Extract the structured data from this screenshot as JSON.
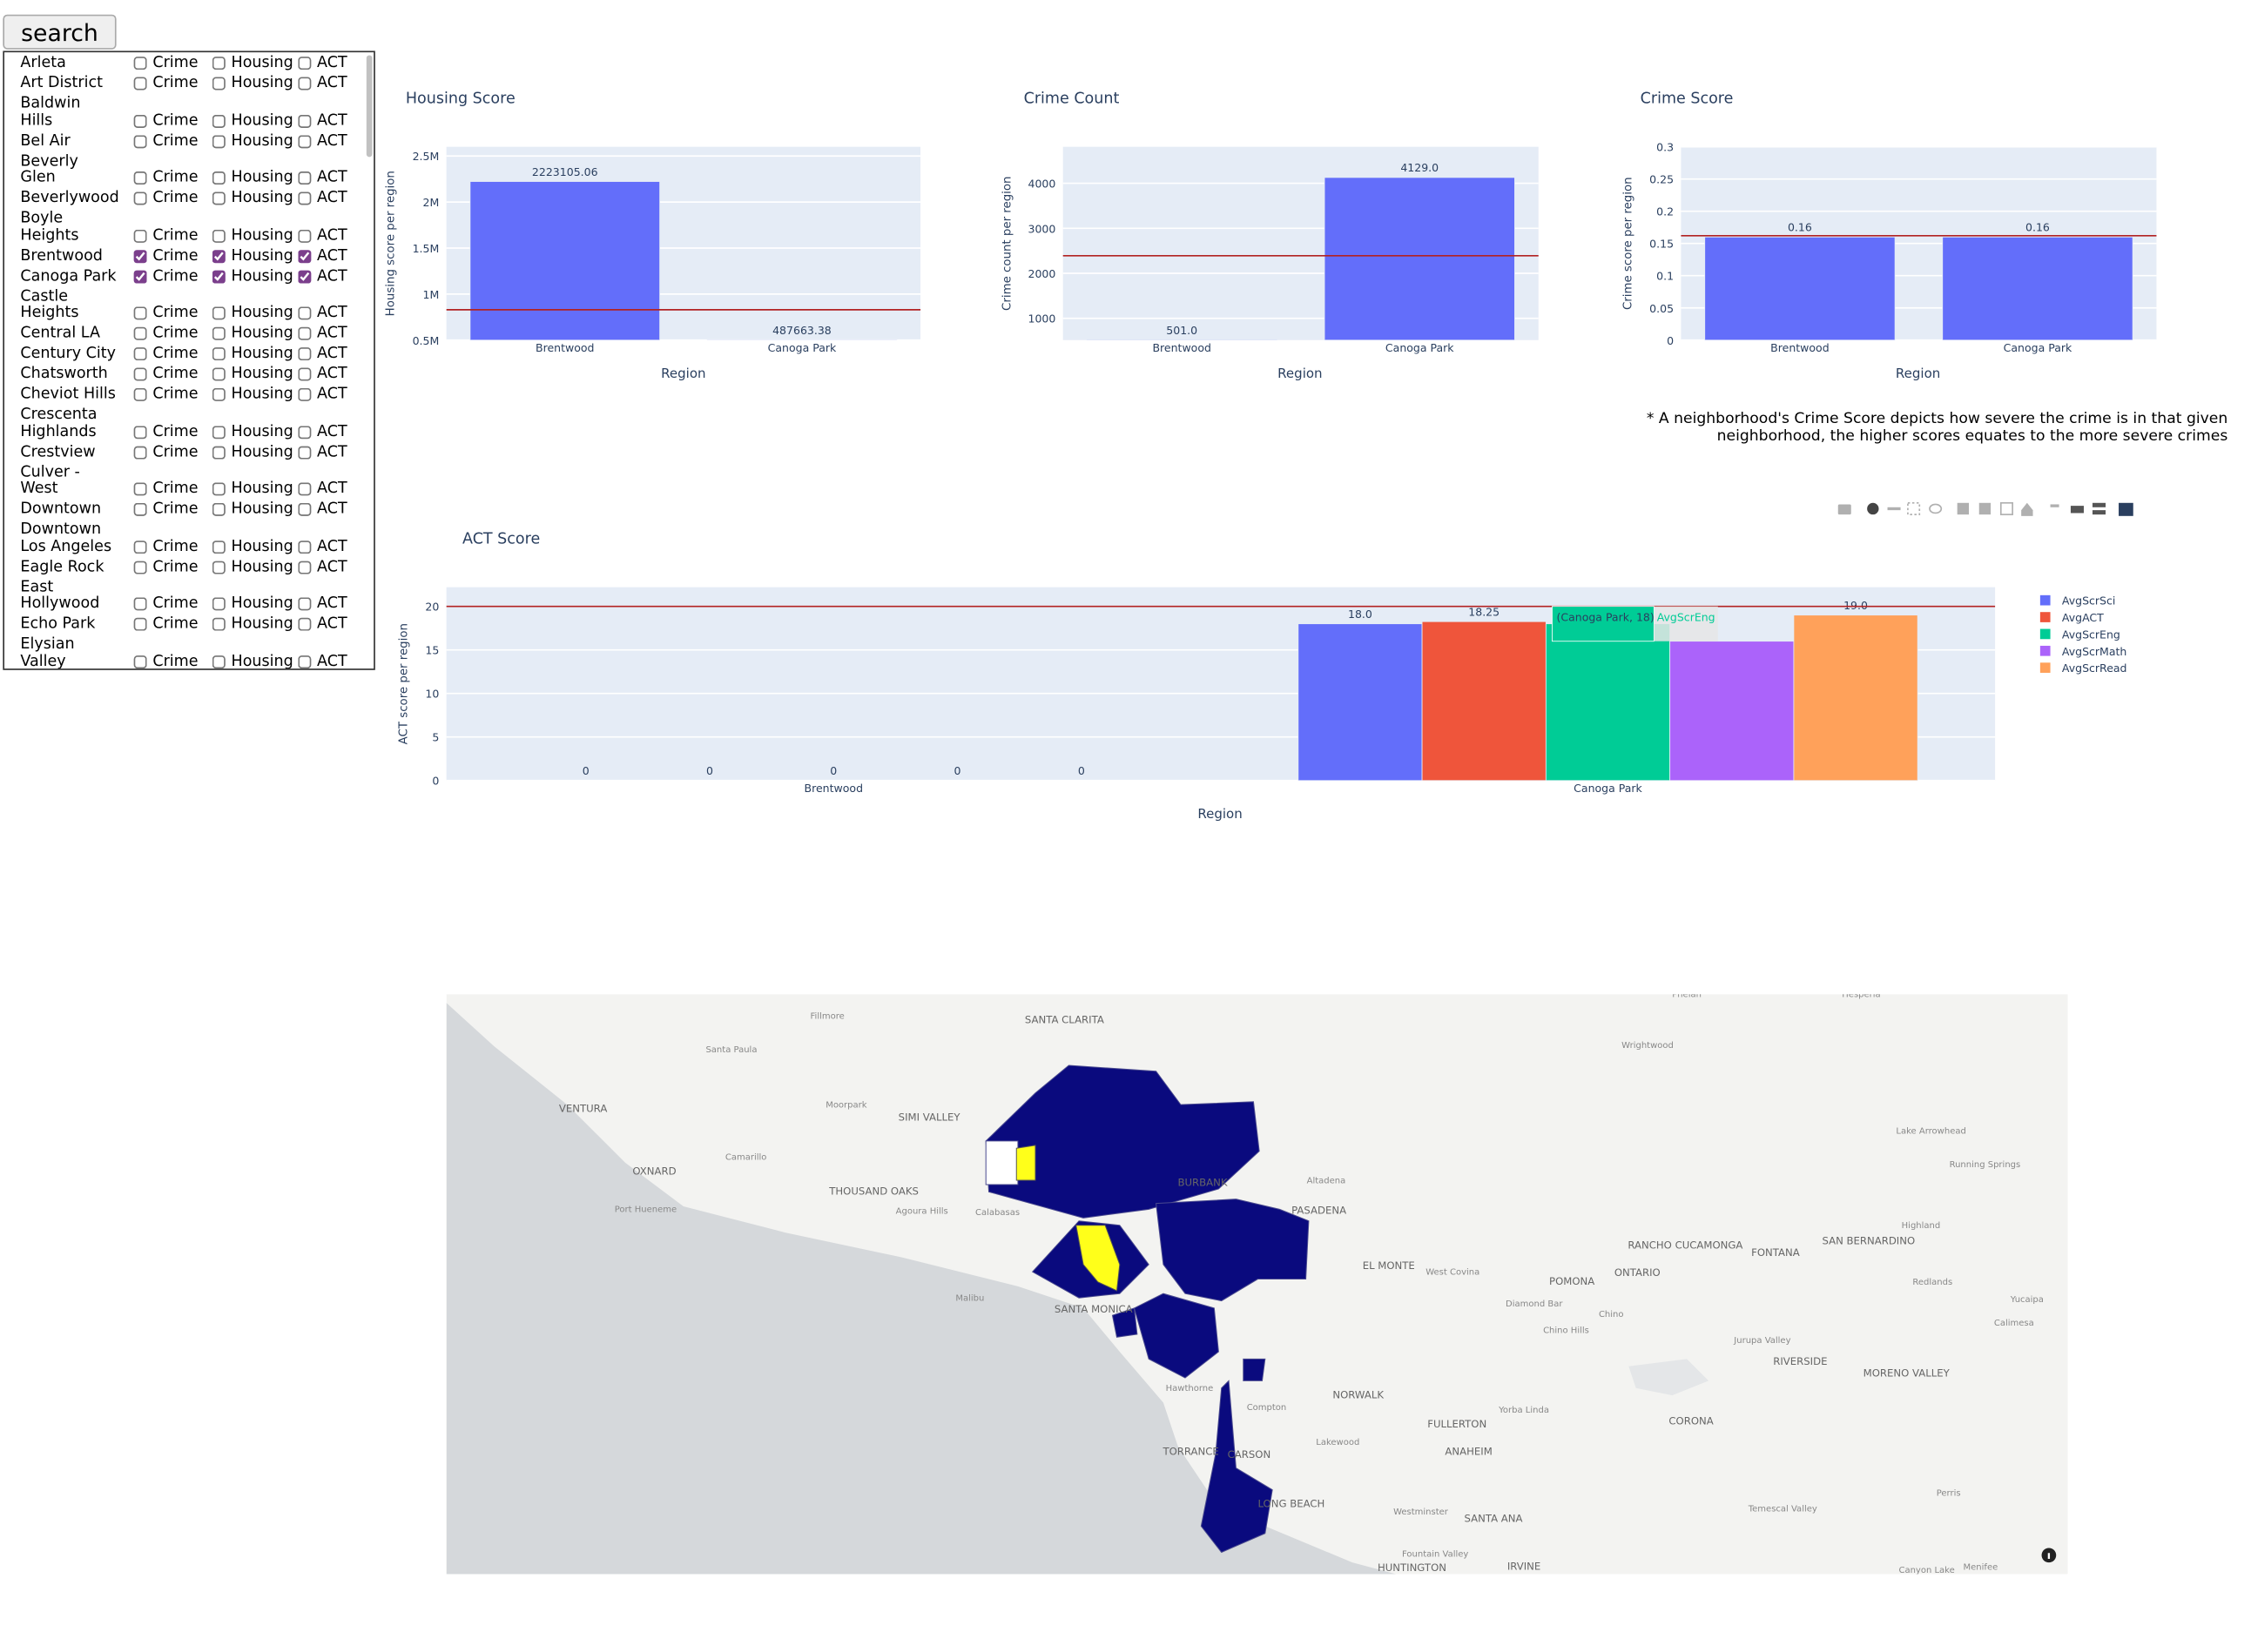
{
  "search_button": "search",
  "checkbox_labels": {
    "crime": "Crime",
    "housing": "Housing",
    "act": "ACT"
  },
  "neighborhoods": [
    {
      "name": "Arleta",
      "checked": [
        false,
        false,
        false
      ]
    },
    {
      "name": "Art District",
      "checked": [
        false,
        false,
        false
      ]
    },
    {
      "name": "Baldwin Hills",
      "checked": [
        false,
        false,
        false
      ]
    },
    {
      "name": "Bel Air",
      "checked": [
        false,
        false,
        false
      ]
    },
    {
      "name": "Beverly Glen",
      "checked": [
        false,
        false,
        false
      ]
    },
    {
      "name": "Beverlywood",
      "checked": [
        false,
        false,
        false
      ]
    },
    {
      "name": "Boyle Heights",
      "checked": [
        false,
        false,
        false
      ]
    },
    {
      "name": "Brentwood",
      "checked": [
        true,
        true,
        true
      ]
    },
    {
      "name": "Canoga Park",
      "checked": [
        true,
        true,
        true
      ]
    },
    {
      "name": "Castle Heights",
      "checked": [
        false,
        false,
        false
      ]
    },
    {
      "name": "Central LA",
      "checked": [
        false,
        false,
        false
      ]
    },
    {
      "name": "Century City",
      "checked": [
        false,
        false,
        false
      ]
    },
    {
      "name": "Chatsworth",
      "checked": [
        false,
        false,
        false
      ]
    },
    {
      "name": "Cheviot Hills",
      "checked": [
        false,
        false,
        false
      ]
    },
    {
      "name": "Crescenta Highlands",
      "checked": [
        false,
        false,
        false
      ]
    },
    {
      "name": "Crestview",
      "checked": [
        false,
        false,
        false
      ]
    },
    {
      "name": "Culver - West",
      "checked": [
        false,
        false,
        false
      ]
    },
    {
      "name": "Downtown",
      "checked": [
        false,
        false,
        false
      ]
    },
    {
      "name": "Downtown Los Angeles",
      "checked": [
        false,
        false,
        false
      ]
    },
    {
      "name": "Eagle Rock",
      "checked": [
        false,
        false,
        false
      ]
    },
    {
      "name": "East Hollywood",
      "checked": [
        false,
        false,
        false
      ]
    },
    {
      "name": "Echo Park",
      "checked": [
        false,
        false,
        false
      ]
    },
    {
      "name": "Elysian Valley",
      "checked": [
        false,
        false,
        false
      ]
    }
  ],
  "chart_data": [
    {
      "type": "bar",
      "title": "Housing Score",
      "x_label": "Region",
      "y_label": "Housing score per region",
      "categories": [
        "Brentwood",
        "Canoga Park"
      ],
      "values": [
        2223105.06,
        487663.38
      ],
      "color": "#636efa",
      "ylim": [
        500000,
        2600000
      ],
      "yticks": [
        {
          "value": 500000,
          "label": "0.5M"
        },
        {
          "value": 1000000,
          "label": "1M"
        },
        {
          "value": 1500000,
          "label": "1.5M"
        },
        {
          "value": 2000000,
          "label": "2M"
        },
        {
          "value": 2500000,
          "label": "2.5M"
        }
      ],
      "grid": true,
      "hline": 830000,
      "hline_color": "#b22222"
    },
    {
      "type": "bar",
      "title": "Crime Count",
      "x_label": "Region",
      "y_label": "Crime count per region",
      "categories": [
        "Brentwood",
        "Canoga Park"
      ],
      "values": [
        501,
        4129
      ],
      "value_labels": [
        "501.0",
        "4129.0"
      ],
      "color": "#636efa",
      "ylim": [
        516,
        4810
      ],
      "yticks": [
        1000,
        2000,
        3000,
        4000
      ],
      "grid": true,
      "hline": 2390,
      "hline_color": "#b22222"
    },
    {
      "type": "bar",
      "title": "Crime Score",
      "x_label": "Region",
      "y_label": "Crime score per region",
      "categories": [
        "Brentwood",
        "Canoga Park"
      ],
      "values": [
        0.16,
        0.16
      ],
      "color": "#636efa",
      "ylim": [
        0,
        0.3
      ],
      "yticks": [
        0,
        0.05,
        0.1,
        0.15,
        0.2,
        0.25,
        0.3
      ],
      "grid": true,
      "hline": 0.162,
      "hline_color": "#b22222",
      "annotation": "* A neighborhood's Crime Score depicts how severe the crime is in that given neighborhood, the higher scores equates to the more severe crimes"
    },
    {
      "type": "bar",
      "title": "ACT Score",
      "x_label": "Region",
      "y_label": "ACT score per region",
      "categories": [
        "Brentwood",
        "Canoga Park"
      ],
      "series": [
        {
          "name": "AvgScrSci",
          "color": "#636efa",
          "values": [
            0,
            18
          ],
          "value_labels": [
            "0",
            "18.0"
          ]
        },
        {
          "name": "AvgACT",
          "color": "#ef553b",
          "values": [
            0,
            18.25
          ]
        },
        {
          "name": "AvgScrEng",
          "color": "#00cc96",
          "values": [
            0,
            18
          ],
          "value_labels": [
            "0",
            "18.0"
          ]
        },
        {
          "name": "AvgScrMath",
          "color": "#ab63fa",
          "values": [
            0,
            16
          ],
          "value_labels": [
            "0",
            null
          ]
        },
        {
          "name": "AvgScrRead",
          "color": "#ffa15a",
          "values": [
            0,
            19
          ],
          "value_labels": [
            "0",
            "19.0"
          ]
        }
      ],
      "ylim": [
        0,
        22.2
      ],
      "yticks": [
        0,
        5,
        10,
        15,
        20
      ],
      "grid": true,
      "hline": 20,
      "hline_color": "#b22222",
      "legend": "right",
      "hover": {
        "label": "(Canoga Park, 18)",
        "series_name": "AvgScrEng"
      }
    }
  ],
  "map": {
    "labels": [
      "Fillmore",
      "Santa Paula",
      "SANTA CLARITA",
      "VENTURA",
      "Moorpark",
      "SIMI VALLEY",
      "Camarillo",
      "OXNARD",
      "THOUSAND OAKS",
      "Agoura Hills",
      "Port Hueneme",
      "Calabasas",
      "Malibu",
      "SANTA MONICA",
      "BURBANK",
      "Altadena",
      "PASADENA",
      "EL MONTE",
      "West Covina",
      "POMONA",
      "ONTARIO",
      "RANCHO CUCAMONGA",
      "FONTANA",
      "SAN BERNARDINO",
      "Highland",
      "Redlands",
      "Yucaipa",
      "Calimesa",
      "Diamond Bar",
      "Chino",
      "Chino Hills",
      "Jurupa Valley",
      "RIVERSIDE",
      "MORENO VALLEY",
      "Hawthorne",
      "Compton",
      "NORWALK",
      "Yorba Linda",
      "CORONA",
      "FULLERTON",
      "Lakewood",
      "ANAHEIM",
      "TORRANCE",
      "CARSON",
      "LONG BEACH",
      "Westminster",
      "SANTA ANA",
      "Fountain Valley",
      "HUNTINGTON",
      "IRVINE",
      "Perris",
      "Temescal Valley",
      "Canyon Lake",
      "Menifee",
      "Wrightwood",
      "Lake Arrowhead",
      "Running Springs",
      "Phelan",
      "Hesperia"
    ]
  }
}
